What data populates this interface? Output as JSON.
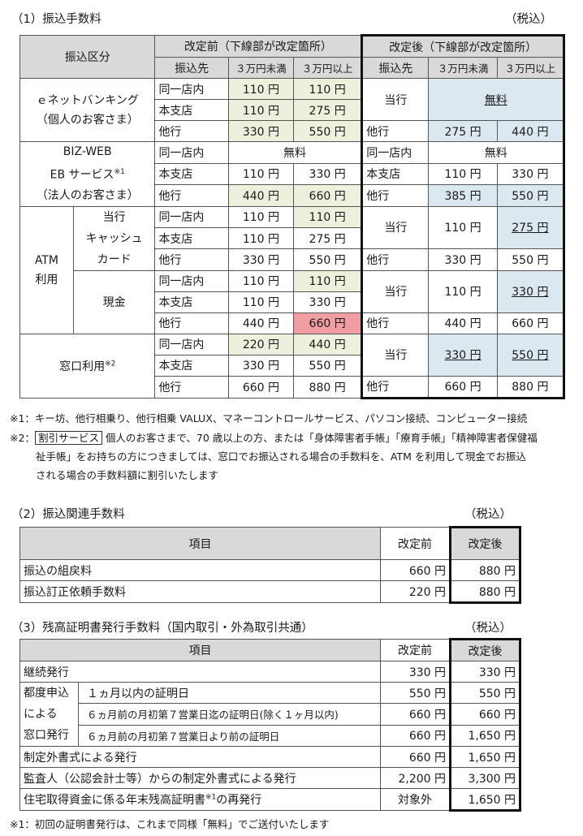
{
  "sec1": {
    "title": "（1）振込手数料",
    "tax": "（税込）",
    "h_kubun": "振込区分",
    "h_before": "改定前（下線部が改定箇所）",
    "h_after": "改定後（下線部が改定箇所）",
    "h_dest": "振込先",
    "h_under": "３万円未満",
    "h_over": "３万円以上",
    "g1_l1": "ｅネットバンキング",
    "g1_l2": "（個人のお客さま）",
    "g2_l1": "BIZ-WEB",
    "g2_l2": "EB サービス",
    "g2_sup": "※1",
    "g2_l3": "（法人のお客さま）",
    "atm_l1": "ATM",
    "atm_l2": "利用",
    "card_l1": "当行",
    "card_l2": "キャッシュ",
    "card_l3": "カード",
    "cash": "現金",
    "window": "窓口利用",
    "window_sup": "※2",
    "same_branch": "同一店内",
    "main_branch": "本支店",
    "other_bank": "他行",
    "our_bank": "当行",
    "free": "無料",
    "v110": "110 円",
    "v220": "220 円",
    "v275": "275 円",
    "v330": "330 円",
    "v385": "385 円",
    "v440": "440 円",
    "v550": "550 円",
    "v660": "660 円",
    "v880": "880 円"
  },
  "notes1": {
    "n1": "※1：キー坊、他行相乗り、他行相乗 VALUX、マネーコントロールサービス、パソコン接続、コンピューター接続",
    "n2_mark": "※2：",
    "n2_box": "割引サービス",
    "n2_a": " 個人のお客さまで、70 歳以上の方、または「身体障害者手帳」「療育手帳」「精神障害者保健福",
    "n2_b": "祉手帳」をお持ちの方につきましては、窓口でお振込される場合の手数料を、ATM を利用して現金でお振込",
    "n2_c": "される場合の手数料額に割引いたします"
  },
  "sec2": {
    "title": "（2）振込関連手数料",
    "tax": "（税込）",
    "h_item": "項目",
    "h_before": "改定前",
    "h_after": "改定後",
    "rows": [
      {
        "item": "振込の組戻料",
        "before": "660 円",
        "after": "880 円"
      },
      {
        "item": "振込訂正依頼手数料",
        "before": "220 円",
        "after": "880 円"
      }
    ]
  },
  "sec3": {
    "title": "（3）残高証明書発行手数料（国内取引・外為取引共通）",
    "tax": "（税込）",
    "h_item": "項目",
    "h_before": "改定前",
    "h_after": "改定後",
    "r1_item": "継続発行",
    "r1_before": "330 円",
    "r1_after": "330 円",
    "tsudo_l1": "都度申込",
    "tsudo_l2": "による",
    "tsudo_l3": "窓口発行",
    "r2_item": "１ヵ月以内の証明日",
    "r2_before": "550 円",
    "r2_after": "550 円",
    "r3_item": "６ヵ月前の月初第７営業日迄の証明日(除く１ヶ月以内)",
    "r3_before": "660 円",
    "r3_after": "660 円",
    "r4_item": "６ヵ月前の月初第７営業日より前の証明日",
    "r4_before": "660 円",
    "r4_after": "1,650 円",
    "r5_item": "制定外書式による発行",
    "r5_before": "660 円",
    "r5_after": "1,650 円",
    "r6_item": "監査人（公認会計士等）からの制定外書式による発行",
    "r6_before": "2,200 円",
    "r6_after": "3,300 円",
    "r7_item_a": "住宅取得資金に係る年末残高証明書",
    "r7_sup": "※1",
    "r7_item_b": "の再発行",
    "r7_before": "対象外",
    "r7_after": "1,650 円"
  },
  "notes3": {
    "n1": "※1：初回の証明書発行は、これまで同様「無料」でご送付いたします"
  }
}
